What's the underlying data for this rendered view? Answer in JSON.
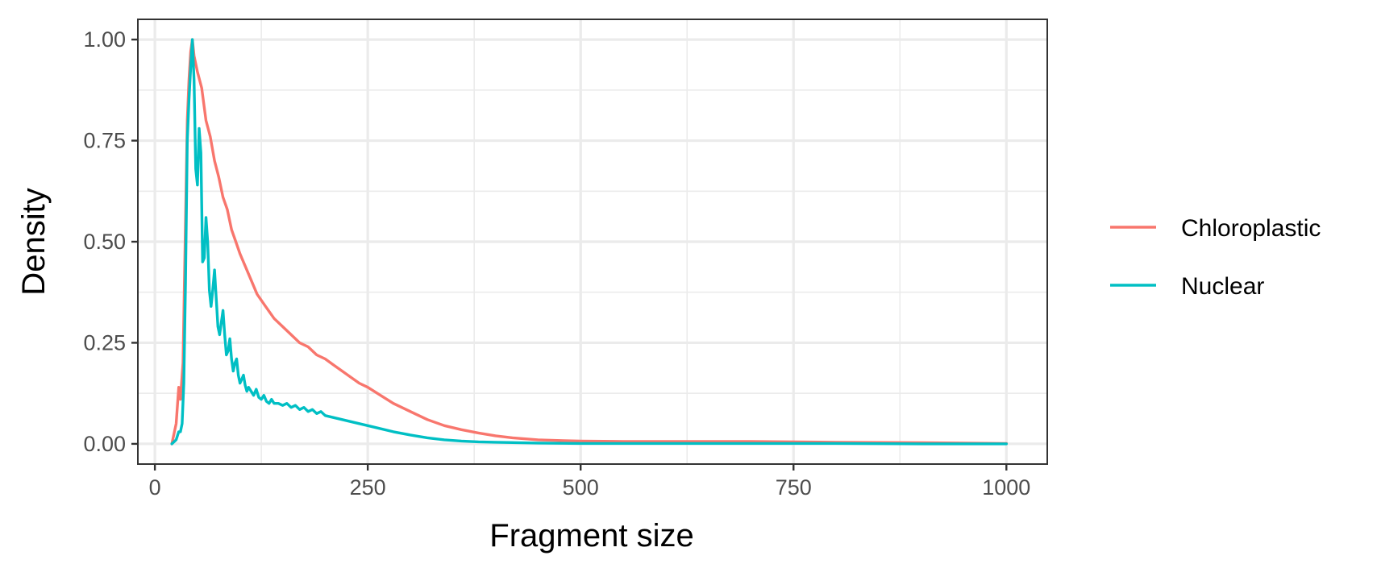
{
  "chart_data": {
    "type": "line",
    "title": "",
    "xlabel": "Fragment size",
    "ylabel": "Density",
    "xlim": [
      -20,
      1048
    ],
    "ylim": [
      -0.05,
      1.05
    ],
    "x_ticks": [
      0,
      250,
      500,
      750,
      1000
    ],
    "x_tick_labels": [
      "0",
      "250",
      "500",
      "750",
      "1000"
    ],
    "y_ticks": [
      0,
      0.25,
      0.5,
      0.75,
      1.0
    ],
    "y_tick_labels": [
      "0.00",
      "0.25",
      "0.50",
      "0.75",
      "1.00"
    ],
    "grid": true,
    "legend_position": "right",
    "series": [
      {
        "name": "Chloroplastic",
        "color": "#F8766D",
        "x": [
          20,
          25,
          28,
          30,
          33,
          36,
          38,
          40,
          42,
          44,
          46,
          48,
          50,
          55,
          60,
          65,
          70,
          75,
          80,
          85,
          90,
          95,
          100,
          110,
          120,
          130,
          140,
          150,
          160,
          170,
          180,
          190,
          200,
          210,
          220,
          230,
          240,
          250,
          265,
          280,
          300,
          320,
          340,
          360,
          380,
          400,
          420,
          450,
          480,
          500,
          550,
          600,
          650,
          700,
          800,
          900,
          1000
        ],
        "y": [
          0.0,
          0.05,
          0.14,
          0.11,
          0.2,
          0.55,
          0.8,
          0.9,
          0.97,
          1.0,
          0.96,
          0.94,
          0.92,
          0.88,
          0.8,
          0.76,
          0.7,
          0.66,
          0.61,
          0.58,
          0.53,
          0.5,
          0.47,
          0.42,
          0.37,
          0.34,
          0.31,
          0.29,
          0.27,
          0.25,
          0.24,
          0.22,
          0.21,
          0.195,
          0.18,
          0.165,
          0.15,
          0.14,
          0.12,
          0.1,
          0.08,
          0.06,
          0.045,
          0.035,
          0.027,
          0.02,
          0.015,
          0.01,
          0.008,
          0.007,
          0.006,
          0.006,
          0.006,
          0.006,
          0.004,
          0.003,
          0.001
        ]
      },
      {
        "name": "Nuclear",
        "color": "#00BFC4",
        "x": [
          20,
          25,
          28,
          30,
          32,
          34,
          36,
          38,
          40,
          42,
          44,
          46,
          48,
          50,
          52,
          54,
          56,
          58,
          60,
          62,
          64,
          66,
          68,
          70,
          72,
          74,
          76,
          78,
          80,
          82,
          84,
          86,
          88,
          90,
          92,
          94,
          96,
          98,
          100,
          102,
          104,
          106,
          108,
          110,
          113,
          116,
          119,
          122,
          125,
          128,
          131,
          134,
          137,
          140,
          145,
          150,
          155,
          160,
          165,
          170,
          175,
          180,
          185,
          190,
          195,
          200,
          210,
          220,
          230,
          240,
          250,
          260,
          280,
          300,
          320,
          340,
          360,
          380,
          400,
          450,
          500,
          600,
          700,
          800,
          900,
          1000
        ],
        "y": [
          0.0,
          0.01,
          0.03,
          0.03,
          0.05,
          0.15,
          0.4,
          0.75,
          0.85,
          0.93,
          1.0,
          0.9,
          0.68,
          0.64,
          0.78,
          0.72,
          0.45,
          0.46,
          0.56,
          0.5,
          0.38,
          0.34,
          0.38,
          0.43,
          0.36,
          0.29,
          0.27,
          0.3,
          0.33,
          0.27,
          0.22,
          0.23,
          0.26,
          0.21,
          0.18,
          0.2,
          0.21,
          0.17,
          0.15,
          0.16,
          0.17,
          0.145,
          0.13,
          0.14,
          0.13,
          0.12,
          0.135,
          0.115,
          0.11,
          0.12,
          0.105,
          0.1,
          0.11,
          0.1,
          0.1,
          0.095,
          0.1,
          0.09,
          0.095,
          0.085,
          0.09,
          0.08,
          0.085,
          0.075,
          0.08,
          0.07,
          0.065,
          0.06,
          0.055,
          0.05,
          0.045,
          0.04,
          0.03,
          0.022,
          0.015,
          0.01,
          0.007,
          0.005,
          0.004,
          0.002,
          0.001,
          0.001,
          0.001,
          0.001,
          0.0,
          0.0
        ]
      }
    ]
  }
}
